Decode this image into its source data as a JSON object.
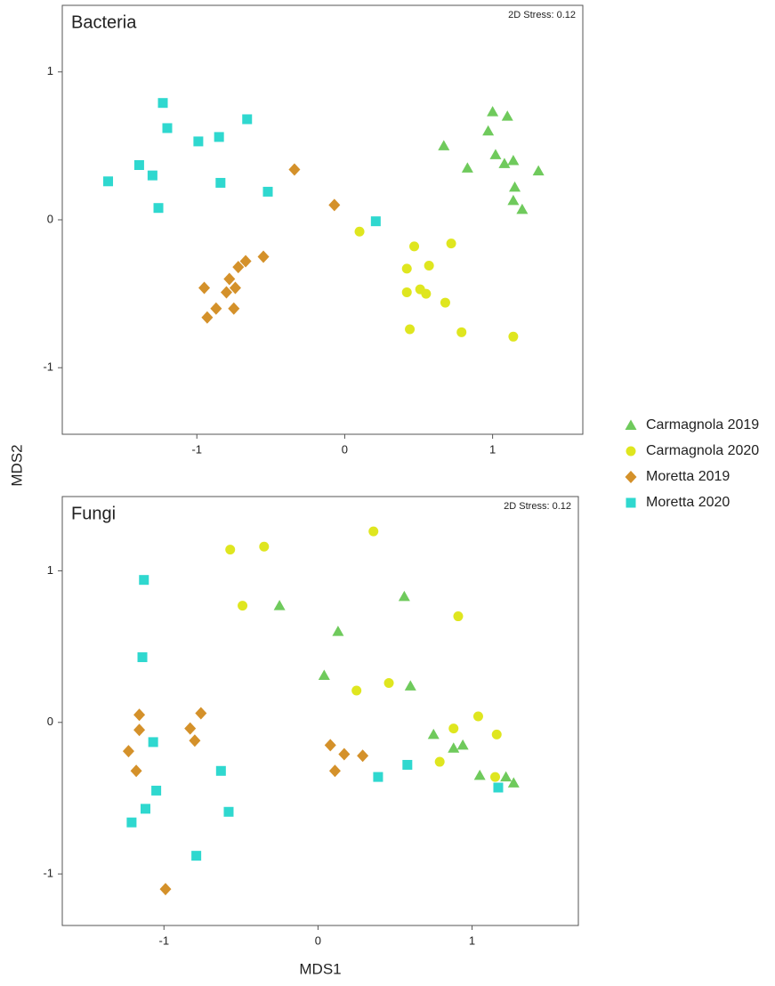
{
  "chart_data": [
    {
      "type": "scatter",
      "title": "Bacteria",
      "annotation": "2D Stress: 0.12",
      "y_label": "MDS2",
      "xlim": [
        -1.91,
        1.61
      ],
      "ylim": [
        -1.45,
        1.45
      ],
      "xticks": [
        -1,
        0,
        1
      ],
      "yticks": [
        -1,
        0,
        1
      ],
      "grid": false,
      "legend": "right",
      "series": [
        {
          "name": "Carmagnola 2019",
          "color": "#6fca5c",
          "marker": "triangle",
          "x": [
            1.0,
            1.1,
            0.67,
            0.97,
            0.83,
            1.02,
            1.08,
            1.14,
            1.31,
            1.15,
            1.14,
            1.2
          ],
          "y": [
            0.73,
            0.7,
            0.5,
            0.6,
            0.35,
            0.44,
            0.38,
            0.4,
            0.33,
            0.22,
            0.13,
            0.07
          ]
        },
        {
          "name": "Carmagnola 2020",
          "color": "#dfe61f",
          "marker": "circle",
          "x": [
            0.1,
            0.47,
            0.72,
            0.42,
            0.57,
            0.42,
            0.51,
            0.55,
            0.68,
            0.44,
            0.79,
            1.14
          ],
          "y": [
            -0.08,
            -0.18,
            -0.16,
            -0.33,
            -0.31,
            -0.49,
            -0.47,
            -0.5,
            -0.56,
            -0.74,
            -0.76,
            -0.79
          ]
        },
        {
          "name": "Moretta 2019",
          "color": "#d4912a",
          "marker": "diamond",
          "x": [
            -0.34,
            -0.07,
            -0.55,
            -0.67,
            -0.72,
            -0.78,
            -0.74,
            -0.8,
            -0.95,
            -0.87,
            -0.75,
            -0.93
          ],
          "y": [
            0.34,
            0.1,
            -0.25,
            -0.28,
            -0.32,
            -0.4,
            -0.46,
            -0.49,
            -0.46,
            -0.6,
            -0.6,
            -0.66
          ]
        },
        {
          "name": "Moretta 2020",
          "color": "#2fd8cf",
          "marker": "square",
          "x": [
            -1.23,
            -1.2,
            -0.66,
            -0.99,
            -0.85,
            -1.39,
            -1.3,
            -1.6,
            -0.84,
            -0.52,
            -1.26,
            0.21
          ],
          "y": [
            0.79,
            0.62,
            0.68,
            0.53,
            0.56,
            0.37,
            0.3,
            0.26,
            0.25,
            0.19,
            0.08,
            -0.01
          ]
        }
      ]
    },
    {
      "type": "scatter",
      "title": "Fungi",
      "annotation": "2D Stress: 0.12",
      "x_label": "MDS1",
      "xlim": [
        -1.66,
        1.69
      ],
      "ylim": [
        -1.34,
        1.49
      ],
      "xticks": [
        -1,
        0,
        1
      ],
      "yticks": [
        -1,
        0,
        1
      ],
      "grid": false,
      "series": [
        {
          "color": "#6fca5c",
          "marker": "triangle",
          "x": [
            -0.25,
            0.56,
            0.13,
            0.04,
            0.6,
            0.75,
            0.88,
            0.94,
            1.05,
            1.22,
            1.27
          ],
          "y": [
            0.77,
            0.83,
            0.6,
            0.31,
            0.24,
            -0.08,
            -0.17,
            -0.15,
            -0.35,
            -0.36,
            -0.4
          ]
        },
        {
          "color": "#dfe61f",
          "marker": "circle",
          "x": [
            -0.57,
            -0.35,
            0.36,
            -0.49,
            0.91,
            0.25,
            0.46,
            1.04,
            0.88,
            1.16,
            0.79,
            1.15
          ],
          "y": [
            1.14,
            1.16,
            1.26,
            0.77,
            0.7,
            0.21,
            0.26,
            0.04,
            -0.04,
            -0.08,
            -0.26,
            -0.36
          ]
        },
        {
          "color": "#d4912a",
          "marker": "diamond",
          "x": [
            -1.16,
            -0.76,
            -1.16,
            -0.83,
            -0.8,
            -1.23,
            -1.18,
            0.08,
            0.17,
            0.29,
            0.11,
            -0.99
          ],
          "y": [
            0.05,
            0.06,
            -0.05,
            -0.04,
            -0.12,
            -0.19,
            -0.32,
            -0.15,
            -0.21,
            -0.22,
            -0.32,
            -1.1
          ]
        },
        {
          "color": "#2fd8cf",
          "marker": "square",
          "x": [
            -1.13,
            -1.14,
            -1.07,
            -0.63,
            0.58,
            0.39,
            -1.05,
            -1.12,
            -0.58,
            -1.21,
            -0.79,
            1.17
          ],
          "y": [
            0.94,
            0.43,
            -0.13,
            -0.32,
            -0.28,
            -0.36,
            -0.45,
            -0.57,
            -0.59,
            -0.66,
            -0.88,
            -0.43
          ]
        }
      ]
    }
  ]
}
